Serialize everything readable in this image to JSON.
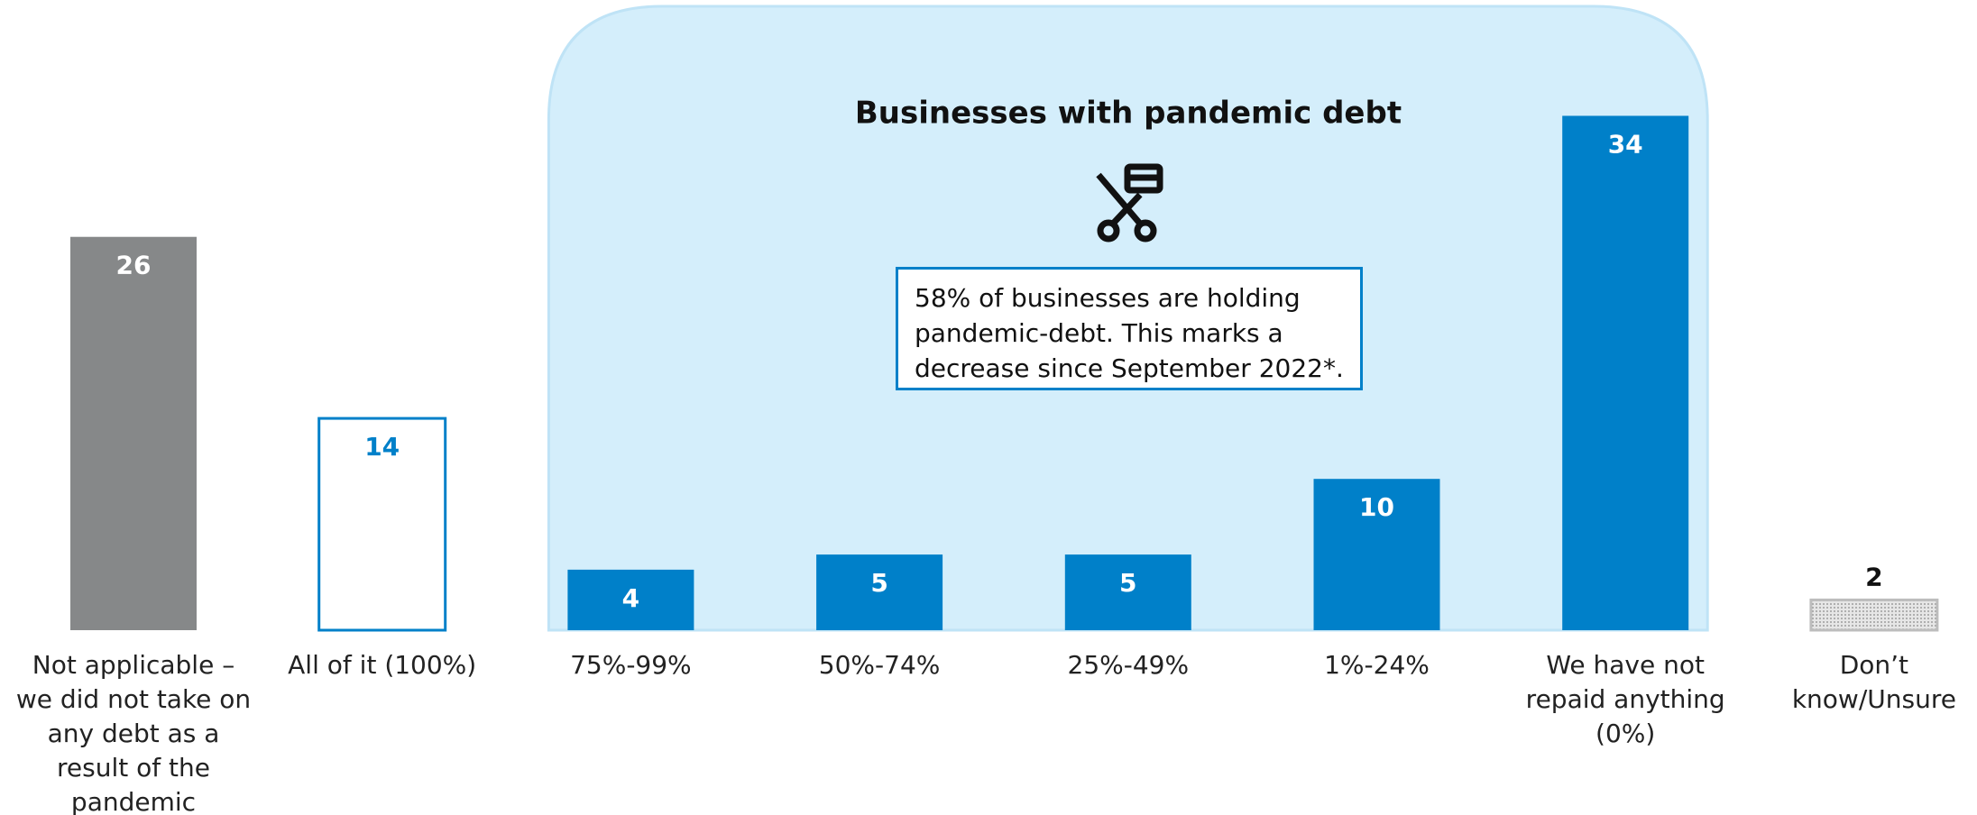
{
  "chart_data": {
    "type": "bar",
    "title": "Businesses with pandemic debt",
    "annotation": "58% of businesses are holding pandemic-debt. This marks a decrease since September 2022*.",
    "categories": [
      "Not applicable –\nwe did not take on\nany debt as a\nresult of the\npandemic",
      "All of it (100%)",
      "75%-99%",
      "50%-74%",
      "25%-49%",
      "1%-24%",
      "We have not\nrepaid anything\n(0%)",
      "Don’t\nknow/Unsure"
    ],
    "values": [
      26,
      14,
      4,
      5,
      5,
      10,
      34,
      2
    ],
    "colors": [
      "#868889",
      "#ffffff",
      "#0080c9",
      "#0080c9",
      "#0080c9",
      "#0080c9",
      "#0080c9",
      "#e0e0e0"
    ],
    "edge_colors": [
      null,
      "#0080c9",
      null,
      null,
      null,
      null,
      null,
      "#bdbdbd"
    ],
    "patterns": [
      null,
      null,
      null,
      null,
      null,
      null,
      null,
      "dots"
    ],
    "highlight_range": [
      2,
      6
    ]
  }
}
